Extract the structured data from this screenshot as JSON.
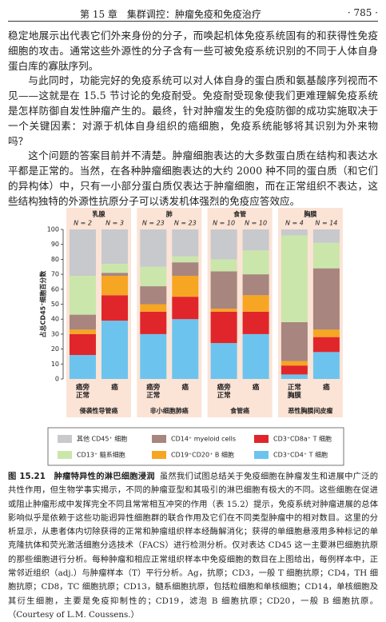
{
  "header": {
    "chapter": "第 15 章　集群调控：肿瘤免疫和免疫治疗",
    "page": "· 785 ·"
  },
  "paragraphs": [
    "稳定地展示出代表它们外来身份的分子，而唤起机体免疫系统固有的和获得性免疫细胞的攻击。通常这些外源性的分子含有一些可被免疫系统识别的不同于人体自身蛋白库的寡肽序列。",
    "与此同时，功能完好的免疫系统可以对人体自身的蛋白质和氨基酸序列视而不见——这就是在 15.5 节讨论的免疫耐受。免疫耐受现象使我们更难理解免疫系统是怎样防御自发性肿瘤产生的。最终，针对肿瘤发生的免疫防御的成功实施取决于一个关键因素：对源于机体自身组织的癌细胞，免疫系统能够将其识别为外来物吗？",
    "这个问题的答案目前并不清楚。肿瘤细胞表达的大多数蛋白质在结构和表达水平都是正常的。当然，在各种肿瘤细胞表达的大约 2000 种不同的蛋白质（和它们的异构体）中，只有一小部分蛋白质仅表达于肿瘤细胞，而在正常组织不表达，这些结构独特的外源性抗原分子可以诱发机体强烈的免疫应答效应。"
  ],
  "chart_data": {
    "type": "bar",
    "stacked": true,
    "ylabel": "占总CD45⁺细胞百分数",
    "groups": [
      "乳腺",
      "肺",
      "食管",
      "胸膜"
    ],
    "group_labels": [
      "侵袭性导管癌",
      "非小细胞肺癌",
      "食管癌",
      "恶性胸膜间皮瘤"
    ],
    "n_labels": [
      "N = 2",
      "N = 3",
      "N = 23",
      "N = 23",
      "N = 10",
      "N = 10",
      "N = 4",
      "N = 14"
    ],
    "categories": [
      "癌旁正常",
      "癌",
      "癌旁正常",
      "癌",
      "癌旁正常",
      "癌",
      "正常胸膜",
      "癌"
    ],
    "ylim": [
      0,
      100
    ],
    "yticks": [
      0,
      10,
      20,
      30,
      40,
      50,
      60,
      70,
      80,
      90,
      100
    ],
    "panel_color": "#fbe3d6",
    "series": [
      {
        "name": "CD3⁺CD4⁺ T 细胞",
        "color": "#6cc4ee",
        "values": [
          16,
          39,
          30,
          40,
          24,
          30,
          3,
          18
        ]
      },
      {
        "name": "CD3⁺CD8a⁺ T 细胞",
        "color": "#e0262b",
        "values": [
          14,
          17,
          15,
          15,
          21,
          15,
          6,
          10
        ]
      },
      {
        "name": "CD19⁺CD20⁺ B 细胞",
        "color": "#f6a623",
        "values": [
          3,
          13,
          5,
          14,
          2,
          11,
          3,
          5
        ]
      },
      {
        "name": "CD14⁺ myeloid cells",
        "color": "#a8857f",
        "values": [
          10,
          2,
          12,
          9,
          25,
          14,
          26,
          41
        ]
      },
      {
        "name": "CD13⁺ 髓系细胞",
        "color": "#cbe6ab",
        "values": [
          26,
          6,
          13,
          4,
          8,
          16,
          58,
          17
        ]
      },
      {
        "name": "其他 CD45⁺ 细胞",
        "color": "#c7c9cd",
        "values": [
          31,
          23,
          25,
          18,
          20,
          14,
          4,
          9
        ]
      }
    ]
  },
  "caption": {
    "label": "图 15.21　肿瘤特异性的淋巴细胞浸润",
    "text": "虽然我们试图总结关于免疫细胞在肿瘤发生和进展中广泛的共性作用，但生物学事实揭示，不同的肿瘤亚型和其吸引的淋巴细胞有极大的不同。这些细胞在促进或阻止肿瘤形成中发挥完全不同且常常相互冲突的作用（表 15.2）提示，免疫系统对肿瘤进展的总体影响似乎是依赖于这些功能迥异性细胞群的联合作用及它们在不同类型肿瘤中的相对数目。这里的分析显示，从患者体内切除获得的正常和肿瘤组织样本经酶解消化；获得的单细胞悬液用多种标记的单克隆抗体和荧光激活细胞分选技术（FACS）进行检测分析。仅对表达 CD45 这一主要淋巴细胞抗原的那些细胞进行分析。每种肿瘤和相应正常组织样本中免疫细胞的数目在上图给出，每例样本中，正常邻近组织（adj.）与肿瘤样本（T）平行分析。Ag，抗原；CD3，一般 T 细胞抗原；CD4，TH 细胞抗原；CD8，TC 细胞抗原；CD13，髓系细胞抗原，包括粒细胞和单核细胞；CD14，单核细胞及其衍生细胞，主要是免疫抑制性的；CD19，滤泡 B 细胞抗原；CD20，一般 B 细胞抗原。（Courtesy of L.M. Coussens.）"
  }
}
